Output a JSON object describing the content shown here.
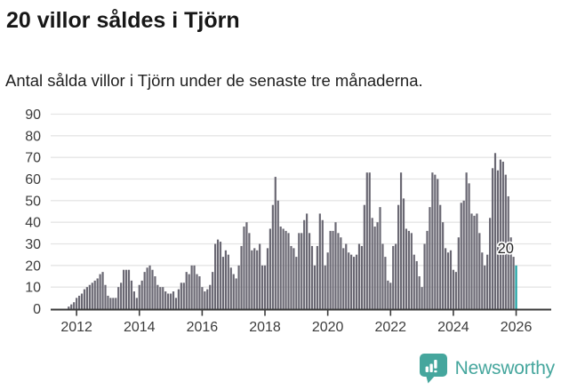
{
  "header": {
    "title": "20 villor såldes i Tjörn",
    "subtitle": "Antal sålda villor i Tjörn under de senaste tre månaderna."
  },
  "chart_data": {
    "type": "bar",
    "title": "20 villor såldes i Tjörn",
    "subtitle": "Antal sålda villor i Tjörn under de senaste tre månaderna.",
    "unit": "sålda villor (rullande tre månader)",
    "frequency": "monthly",
    "start": "2011-10",
    "end": "2026-01",
    "values": [
      1,
      2,
      3,
      5,
      6,
      7,
      9,
      10,
      11,
      12,
      13,
      14,
      16,
      17,
      11,
      6,
      5,
      5,
      5,
      10,
      12,
      18,
      18,
      18,
      13,
      8,
      5,
      11,
      13,
      17,
      19,
      20,
      18,
      15,
      11,
      10,
      10,
      8,
      7,
      7,
      8,
      5,
      9,
      12,
      12,
      17,
      16,
      20,
      20,
      16,
      15,
      10,
      8,
      9,
      11,
      17,
      30,
      32,
      31,
      24,
      27,
      25,
      19,
      16,
      14,
      20,
      29,
      38,
      40,
      35,
      27,
      28,
      27,
      30,
      20,
      20,
      28,
      37,
      48,
      61,
      50,
      38,
      37,
      36,
      35,
      29,
      28,
      24,
      35,
      35,
      41,
      44,
      35,
      29,
      20,
      29,
      44,
      41,
      20,
      26,
      36,
      36,
      40,
      35,
      33,
      28,
      30,
      26,
      25,
      24,
      25,
      30,
      29,
      48,
      63,
      63,
      42,
      38,
      40,
      47,
      30,
      24,
      13,
      12,
      29,
      30,
      48,
      63,
      51,
      37,
      36,
      35,
      25,
      22,
      15,
      10,
      30,
      36,
      47,
      63,
      62,
      60,
      48,
      40,
      28,
      26,
      27,
      18,
      17,
      33,
      49,
      50,
      63,
      58,
      44,
      43,
      44,
      35,
      26,
      20,
      25,
      42,
      65,
      72,
      64,
      69,
      68,
      62,
      52,
      33,
      24,
      20
    ],
    "highlight_last": true,
    "last_value": 20,
    "annotation": {
      "text": "20"
    },
    "xlabel": "",
    "ylabel": "",
    "ylim": [
      0,
      90
    ],
    "yticks": [
      0,
      10,
      20,
      30,
      40,
      50,
      60,
      70,
      80,
      90
    ],
    "xticks": [
      "2012",
      "2014",
      "2016",
      "2018",
      "2020",
      "2022",
      "2024",
      "2026"
    ],
    "grid": true,
    "legend": false,
    "colors": {
      "bar": "#6A6873",
      "highlight": "#1AA0A1",
      "grid": "#E4E4E4",
      "axis": "#3B3B3B",
      "tick_label": "#3C3C3C",
      "annotation_text": "#262626",
      "annotation_halo": "#FFFFFF"
    }
  },
  "footer": {
    "brand": "Newsworthy",
    "brand_color": "#45A69D"
  }
}
